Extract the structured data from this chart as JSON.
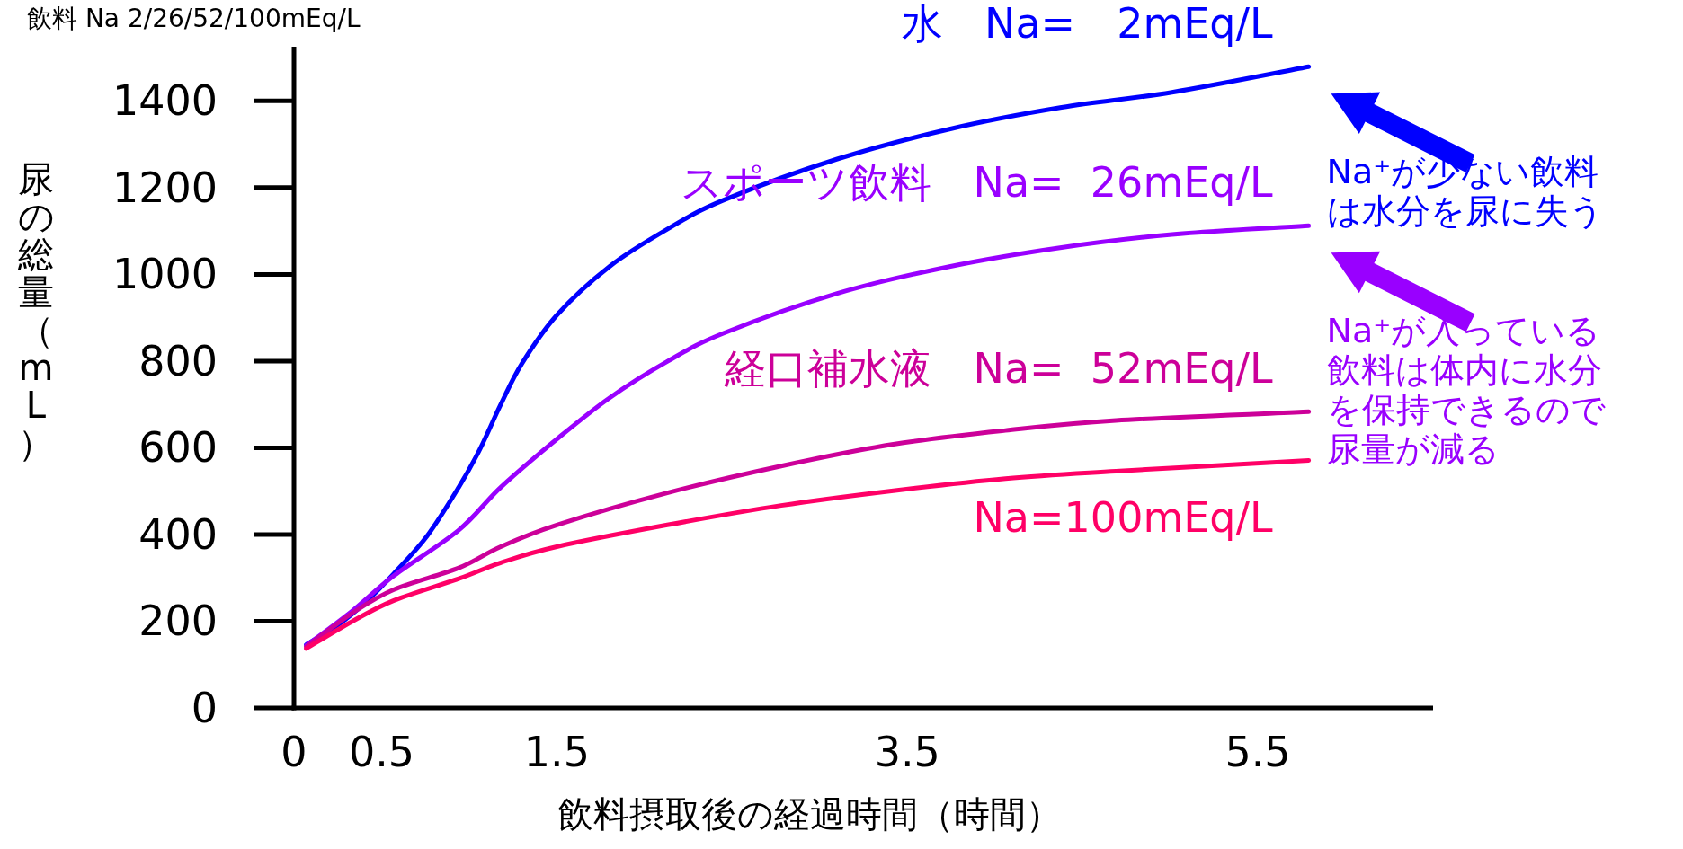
{
  "chart_data": {
    "type": "line",
    "xlabel": "飲料摂取後の経過時間（時間）",
    "ylabel": "尿の総量（mL）",
    "xlim": [
      0,
      6.5
    ],
    "xticks": [
      0,
      0.5,
      1.5,
      3.5,
      5.5
    ],
    "ylim": [
      0,
      1525
    ],
    "yticks": [
      0,
      200,
      400,
      600,
      800,
      1000,
      1200,
      1400
    ],
    "grid": false,
    "legend": false,
    "marker": "none",
    "line_style": "solid",
    "series": [
      {
        "name": "水　Na=　2mEq/L",
        "color": "#0000ff",
        "x": [
          0.07,
          0.25,
          0.42,
          0.57,
          0.76,
          0.94,
          1.06,
          1.18,
          1.3,
          1.5,
          1.8,
          2.13,
          2.45,
          3.1,
          3.74,
          4.38,
          5.01,
          5.79
        ],
        "values": [
          146,
          191,
          248,
          310,
          397,
          509,
          596,
          700,
          794,
          906,
          1018,
          1104,
          1171,
          1266,
          1335,
          1385,
          1420,
          1479
        ]
      },
      {
        "name": "スポーツ飲料　Na=  26mEq/L",
        "color": "#9900ff",
        "x": [
          0.07,
          0.33,
          0.57,
          0.94,
          1.18,
          1.5,
          1.8,
          2.13,
          2.45,
          3.1,
          3.74,
          4.38,
          5.01,
          5.79
        ],
        "values": [
          144,
          223,
          305,
          410,
          509,
          620,
          715,
          799,
          864,
          956,
          1018,
          1062,
          1092,
          1112
        ]
      },
      {
        "name": "経口補水液　Na=  52mEq/L",
        "color": "#cc0099",
        "x": [
          0.07,
          0.33,
          0.57,
          0.94,
          1.18,
          1.5,
          2.13,
          2.78,
          3.42,
          4.06,
          4.69,
          5.79
        ],
        "values": [
          141,
          218,
          273,
          323,
          372,
          422,
          496,
          558,
          608,
          640,
          663,
          683
        ]
      },
      {
        "name": "Na=100mEq/L",
        "color": "#ff0066",
        "x": [
          0.07,
          0.33,
          0.57,
          0.94,
          1.18,
          1.5,
          2.13,
          2.78,
          3.42,
          4.06,
          4.69,
          5.79
        ],
        "values": [
          137,
          199,
          248,
          298,
          335,
          372,
          422,
          467,
          501,
          529,
          546,
          571
        ]
      }
    ],
    "annotations": [
      "飲料 Na 2/26/52/100mEq/L",
      {
        "text": "Na⁺が少ない飲料は水分を尿に失う",
        "x": 5.79,
        "y": 1479
      },
      {
        "text": "Na⁺が入っている飲料は体内に水分を保持できるので尿量が減る",
        "x": 5.79,
        "y": 1112
      }
    ]
  }
}
